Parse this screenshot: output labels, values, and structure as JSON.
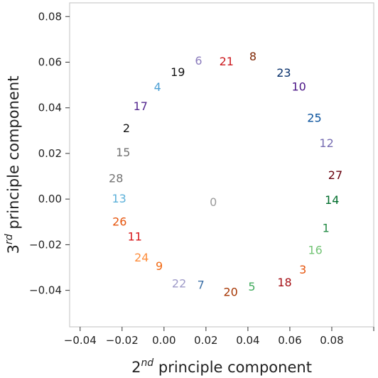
{
  "chart_data": {
    "type": "scatter",
    "title": "",
    "xlabel": {
      "base": "2",
      "sup": "nd",
      "text": " principle component"
    },
    "ylabel": {
      "base": "3",
      "sup": "rd",
      "text": " principle component"
    },
    "xlim": [
      -0.045,
      0.1
    ],
    "ylim": [
      -0.056,
      0.086
    ],
    "xticks": [
      {
        "value": -0.04,
        "label": "−0.04"
      },
      {
        "value": -0.02,
        "label": "−0.02"
      },
      {
        "value": 0.0,
        "label": "0.00"
      },
      {
        "value": 0.02,
        "label": "0.02"
      },
      {
        "value": 0.04,
        "label": "0.04"
      },
      {
        "value": 0.06,
        "label": "0.06"
      },
      {
        "value": 0.08,
        "label": "0.08"
      }
    ],
    "xticks_unlabeled": [
      0.1
    ],
    "yticks": [
      {
        "value": -0.04,
        "label": "−0.04"
      },
      {
        "value": -0.02,
        "label": "−0.02"
      },
      {
        "value": 0.0,
        "label": "0.00"
      },
      {
        "value": 0.02,
        "label": "0.02"
      },
      {
        "value": 0.04,
        "label": "0.04"
      },
      {
        "value": 0.06,
        "label": "0.06"
      },
      {
        "value": 0.08,
        "label": "0.08"
      }
    ],
    "grid": false,
    "points": [
      {
        "label": "0",
        "x": 0.0235,
        "y": -0.0012,
        "color": "#9a9a9a"
      },
      {
        "label": "1",
        "x": 0.0772,
        "y": -0.0126,
        "color": "#238b45"
      },
      {
        "label": "2",
        "x": -0.0179,
        "y": 0.0312,
        "color": "#111111"
      },
      {
        "label": "3",
        "x": 0.0662,
        "y": -0.0307,
        "color": "#e6550d"
      },
      {
        "label": "4",
        "x": -0.0031,
        "y": 0.0492,
        "color": "#4c9fd4"
      },
      {
        "label": "5",
        "x": 0.0419,
        "y": -0.0383,
        "color": "#41ab5d"
      },
      {
        "label": "6",
        "x": 0.0165,
        "y": 0.0607,
        "color": "#8c7dbd"
      },
      {
        "label": "7",
        "x": 0.0176,
        "y": -0.0375,
        "color": "#3b6fa6"
      },
      {
        "label": "8",
        "x": 0.0424,
        "y": 0.0627,
        "color": "#7f2704"
      },
      {
        "label": "9",
        "x": -0.0023,
        "y": -0.0292,
        "color": "#f16913"
      },
      {
        "label": "10",
        "x": 0.0643,
        "y": 0.0494,
        "color": "#4a1486"
      },
      {
        "label": "11",
        "x": -0.0139,
        "y": -0.0163,
        "color": "#d7191c"
      },
      {
        "label": "12",
        "x": 0.0775,
        "y": 0.0247,
        "color": "#756bb1"
      },
      {
        "label": "13",
        "x": -0.0214,
        "y": 0.0003,
        "color": "#5bb0d9"
      },
      {
        "label": "14",
        "x": 0.0801,
        "y": -0.0002,
        "color": "#006d2c"
      },
      {
        "label": "15",
        "x": -0.0195,
        "y": 0.0206,
        "color": "#737373"
      },
      {
        "label": "16",
        "x": 0.0721,
        "y": -0.0222,
        "color": "#74c476"
      },
      {
        "label": "17",
        "x": -0.0112,
        "y": 0.0409,
        "color": "#54278f"
      },
      {
        "label": "18",
        "x": 0.0575,
        "y": -0.0364,
        "color": "#a50f15"
      },
      {
        "label": "19",
        "x": 0.0066,
        "y": 0.0558,
        "color": "#111111"
      },
      {
        "label": "20",
        "x": 0.0318,
        "y": -0.0406,
        "color": "#a63603"
      },
      {
        "label": "21",
        "x": 0.0298,
        "y": 0.0605,
        "color": "#cb181d"
      },
      {
        "label": "22",
        "x": 0.0072,
        "y": -0.0368,
        "color": "#9e9ac8"
      },
      {
        "label": "23",
        "x": 0.0571,
        "y": 0.0555,
        "color": "#08306b"
      },
      {
        "label": "24",
        "x": -0.0107,
        "y": -0.0255,
        "color": "#fd8d3c"
      },
      {
        "label": "25",
        "x": 0.0717,
        "y": 0.0357,
        "color": "#08519c"
      },
      {
        "label": "26",
        "x": -0.0212,
        "y": -0.0098,
        "color": "#e6550d"
      },
      {
        "label": "27",
        "x": 0.0817,
        "y": 0.0107,
        "color": "#67000d"
      },
      {
        "label": "28",
        "x": -0.0229,
        "y": 0.0092,
        "color": "#737373"
      }
    ]
  }
}
